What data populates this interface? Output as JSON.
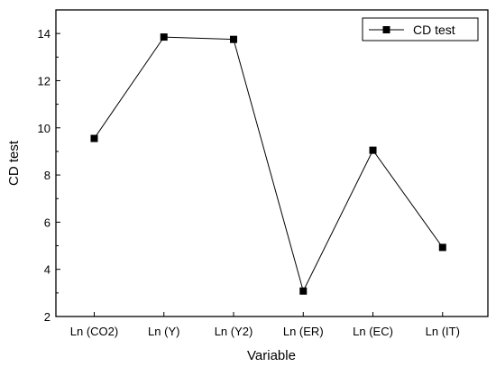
{
  "chart_data": {
    "type": "line",
    "categories": [
      "Ln (CO2)",
      "Ln (Y)",
      "Ln (Y2)",
      "Ln (ER)",
      "Ln (EC)",
      "Ln (IT)"
    ],
    "series": [
      {
        "name": "CD test",
        "values": [
          9.55,
          13.85,
          13.75,
          3.08,
          9.05,
          4.93
        ]
      }
    ],
    "xlabel": "Variable",
    "ylabel": "CD test",
    "ylim": [
      2,
      15
    ],
    "yticks": [
      "2",
      "4",
      "6",
      "8",
      "10",
      "12",
      "14"
    ],
    "grid": false,
    "legend_position": "top-right",
    "colors": {
      "line": "#000000",
      "marker": "#000000",
      "axis": "#000000"
    }
  }
}
